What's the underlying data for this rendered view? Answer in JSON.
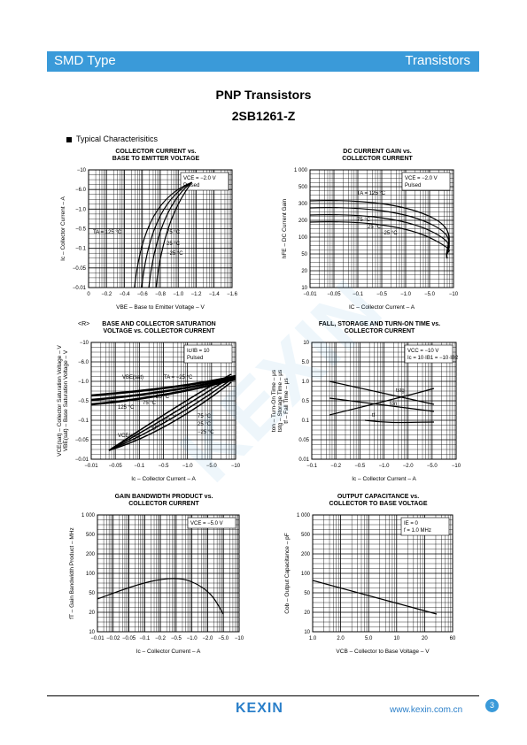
{
  "header": {
    "left": "SMD Type",
    "right": "Transistors"
  },
  "title_line1": "PNP  Transistors",
  "title_line2": "2SB1261-Z",
  "section": "Typical  Characterisitics",
  "charts": [
    {
      "id": "c1",
      "title1": "COLLECTOR CURRENT vs.",
      "title2": "BASE TO EMITTER VOLTAGE",
      "ylabel": "Ic – Collector Current – A",
      "xlabel": "VBE – Base to Emitter Voltage – V",
      "xticks": [
        "0",
        "−0.2",
        "−0.4",
        "−0.6",
        "−0.8",
        "−1.0",
        "−1.2",
        "−1.4",
        "−1.6"
      ],
      "yticks": [
        "−10",
        "−6.0",
        "−1.0",
        "−0.5",
        "−0.1",
        "−0.05",
        "−0.01"
      ],
      "cond": [
        "VCE = −2.0 V",
        "Pulsed"
      ],
      "labels": [
        "TA = 125 °C",
        "75 °C",
        "25 °C",
        "−25 °C"
      ]
    },
    {
      "id": "c2",
      "title1": "DC CURRENT GAIN vs.",
      "title2": "COLLECTOR CURRENT",
      "ylabel": "hFE – DC Current Gain",
      "xlabel": "IC – Collector Current – A",
      "xticks": [
        "−0.01",
        "−0.05",
        "−0.1",
        "−0.5",
        "−1.0",
        "−5.0",
        "−10"
      ],
      "yticks": [
        "1 000",
        "500",
        "300",
        "200",
        "100",
        "50",
        "20",
        "10"
      ],
      "cond": [
        "VCE = −2.0 V",
        "Pulsed"
      ],
      "labels": [
        "TA = 125 °C",
        "75 °C",
        "25 °C",
        "−25 °C"
      ]
    },
    {
      "id": "c3",
      "title1": "BASE AND COLLECTOR SATURATION",
      "title2": "VOLTAGE vs. COLLECTOR CURRENT",
      "tag": "<R>",
      "ylabel": "VCE(sat) – Collector Saturation Voltage – V",
      "ylabel2": "VBE(sat) – Base Saturation Voltage – V",
      "xlabel": "Ic – Collector Current – A",
      "xticks": [
        "−0.01",
        "−0.05",
        "−0.1",
        "−0.5",
        "−1.0",
        "−5.0",
        "−10"
      ],
      "yticks": [
        "−10",
        "−6.0",
        "−1.0",
        "−0.5",
        "−0.1",
        "−0.05",
        "−0.01"
      ],
      "cond": [
        "Ic/IB = 10",
        "Pulsed"
      ],
      "labels": [
        "VBE(sat)",
        "TA = −25 °C",
        "25 °C",
        "75 °C",
        "125 °C",
        "VCE(sat)",
        "TA = 125 °C",
        "75 °C",
        "25 °C",
        "−25 °C"
      ]
    },
    {
      "id": "c4",
      "title1": "FALL, STORAGE AND TURN-ON TIME vs.",
      "title2": "COLLECTOR CURRENT",
      "ylabel": "ton – Turn-On Time – μs",
      "ylabel2": "tstg – Storage Time – μs",
      "ylabel3": "tf – Fall Time – μs",
      "xlabel": "Ic – Collector Current – A",
      "xticks": [
        "−0.1",
        "−0.2",
        "−0.5",
        "−1.0",
        "−2.0",
        "−5.0",
        "−10"
      ],
      "yticks": [
        "10",
        "5.0",
        "1.0",
        "0.5",
        "0.1",
        "0.05",
        "0.01"
      ],
      "cond": [
        "VCC = −10 V",
        "Ic = 10·IB1 = −10·IB2"
      ],
      "labels": [
        "tstg",
        "ton",
        "tf"
      ]
    },
    {
      "id": "c5",
      "title1": "GAIN BANDWIDTH PRODUCT vs.",
      "title2": "COLLECTOR CURRENT",
      "ylabel": "fT – Gain Bandwidth Product – MHz",
      "xlabel": "Ic – Collector Current – A",
      "xticks": [
        "−0.01",
        "−0.02",
        "−0.05",
        "−0.1",
        "−0.2",
        "−0.5",
        "−1.0",
        "−2.0",
        "−5.0",
        "−10"
      ],
      "yticks": [
        "1 000",
        "500",
        "200",
        "100",
        "50",
        "20",
        "10"
      ],
      "cond": [
        "VCE = −5.0 V"
      ],
      "labels": []
    },
    {
      "id": "c6",
      "title1": "OUTPUT CAPACITANCE vs.",
      "title2": "COLLECTOR TO BASE VOLTAGE",
      "ylabel": "Cob – Output Capacitance – pF",
      "xlabel": "VCB – Collector to Base Voltage – V",
      "xticks": [
        "1.0",
        "2.0",
        "5.0",
        "10",
        "20",
        "60"
      ],
      "yticks": [
        "1 000",
        "500",
        "200",
        "100",
        "50",
        "20",
        "10"
      ],
      "cond": [
        "IE = 0",
        "f = 1.0 MHz"
      ],
      "labels": []
    }
  ],
  "footer": {
    "logo": "KEXIN",
    "url": "www.kexin.com.cn",
    "page": "3"
  },
  "colors": {
    "accent": "#3a9ad9"
  }
}
